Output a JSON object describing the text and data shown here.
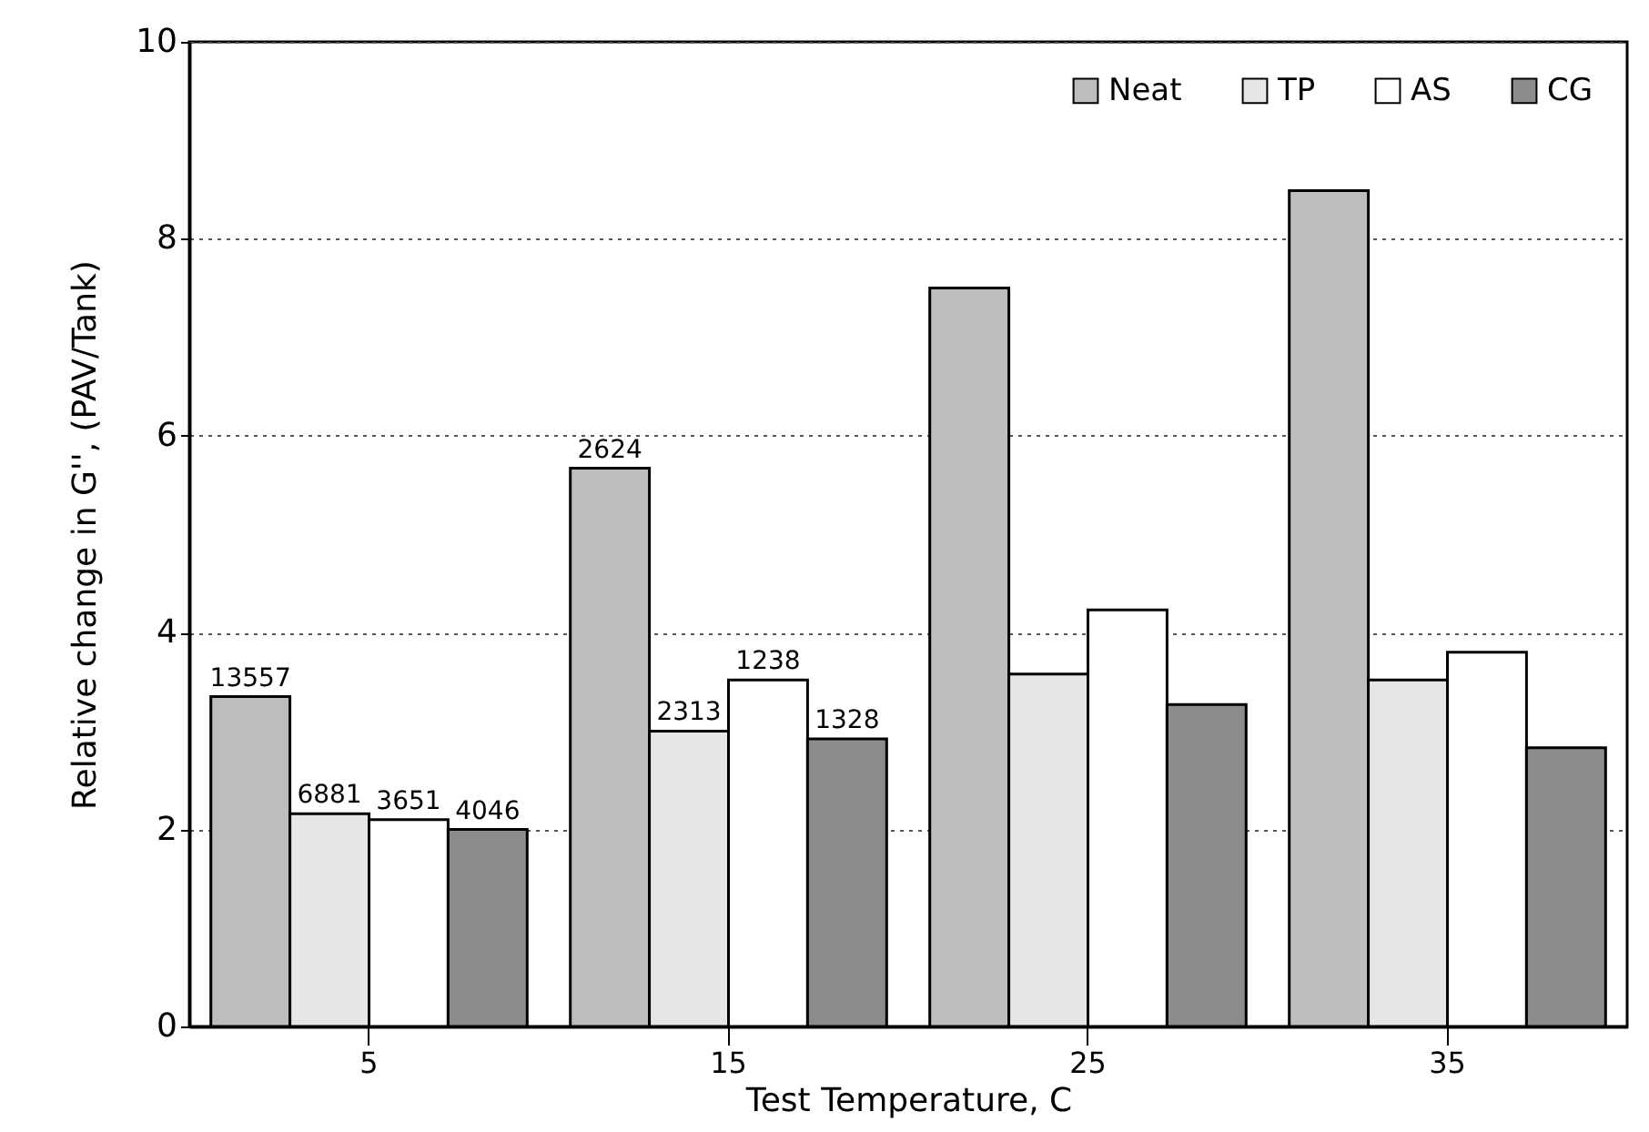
{
  "chart_data": {
    "type": "bar",
    "xlabel": "Test Temperature, C",
    "ylabel": "Relative change in G'', (PAV/Tank)",
    "categories": [
      "5",
      "15",
      "25",
      "35"
    ],
    "series": [
      {
        "name": "Neat",
        "color": "#bdbdbd",
        "values": [
          3.35,
          5.67,
          7.5,
          8.49
        ]
      },
      {
        "name": "TP",
        "color": "#e6e6e6",
        "values": [
          2.16,
          3.0,
          3.58,
          3.52
        ]
      },
      {
        "name": "AS",
        "color": "#ffffff",
        "values": [
          2.1,
          3.52,
          4.23,
          3.8
        ]
      },
      {
        "name": "CG",
        "color": "#8c8c8c",
        "values": [
          2.0,
          2.92,
          3.27,
          2.83
        ]
      }
    ],
    "annotations": [
      "13557",
      "6881",
      "3651",
      "4046",
      "2624",
      "2313",
      "1238",
      "1328"
    ],
    "ylim": [
      0,
      10
    ],
    "yticks": [
      0,
      2,
      4,
      6,
      8,
      10
    ],
    "grid": "y",
    "legend": "top right"
  }
}
